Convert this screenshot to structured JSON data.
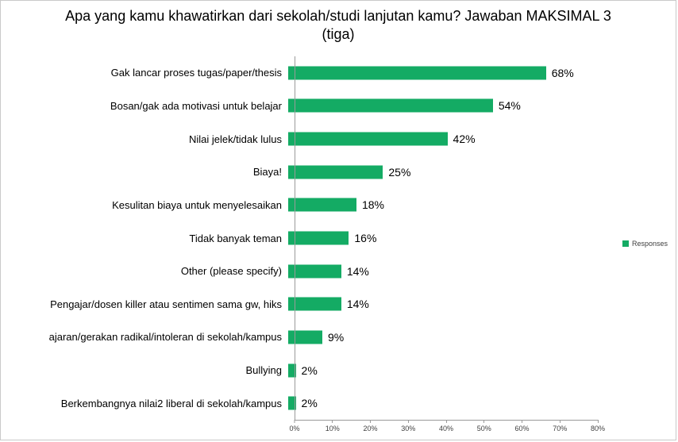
{
  "chart_data": {
    "type": "bar",
    "orientation": "horizontal",
    "title": "Apa yang kamu khawatirkan dari sekolah/studi lanjutan kamu? Jawaban MAKSIMAL 3 (tiga)",
    "categories": [
      "Gak lancar proses tugas/paper/thesis",
      "Bosan/gak ada motivasi untuk belajar",
      "Nilai jelek/tidak lulus",
      "Biaya!",
      "Kesulitan biaya untuk menyelesaikan",
      "Tidak banyak teman",
      "Other (please specify)",
      "Pengajar/dosen killer atau sentimen sama gw, hiks",
      "ajaran/gerakan radikal/intoleran di sekolah/kampus",
      "Bullying",
      "Berkembangnya nilai2 liberal di sekolah/kampus"
    ],
    "values": [
      68,
      54,
      42,
      25,
      18,
      16,
      14,
      14,
      9,
      2,
      2
    ],
    "value_labels": [
      "68%",
      "54%",
      "42%",
      "25%",
      "18%",
      "16%",
      "14%",
      "14%",
      "9%",
      "2%",
      "2%"
    ],
    "xlim": [
      0,
      80
    ],
    "x_ticks": [
      "0%",
      "10%",
      "20%",
      "30%",
      "40%",
      "50%",
      "60%",
      "70%",
      "80%"
    ],
    "legend": [
      "Responses"
    ],
    "legend_position": "right",
    "bar_color": "#14AB64",
    "grid": false
  }
}
